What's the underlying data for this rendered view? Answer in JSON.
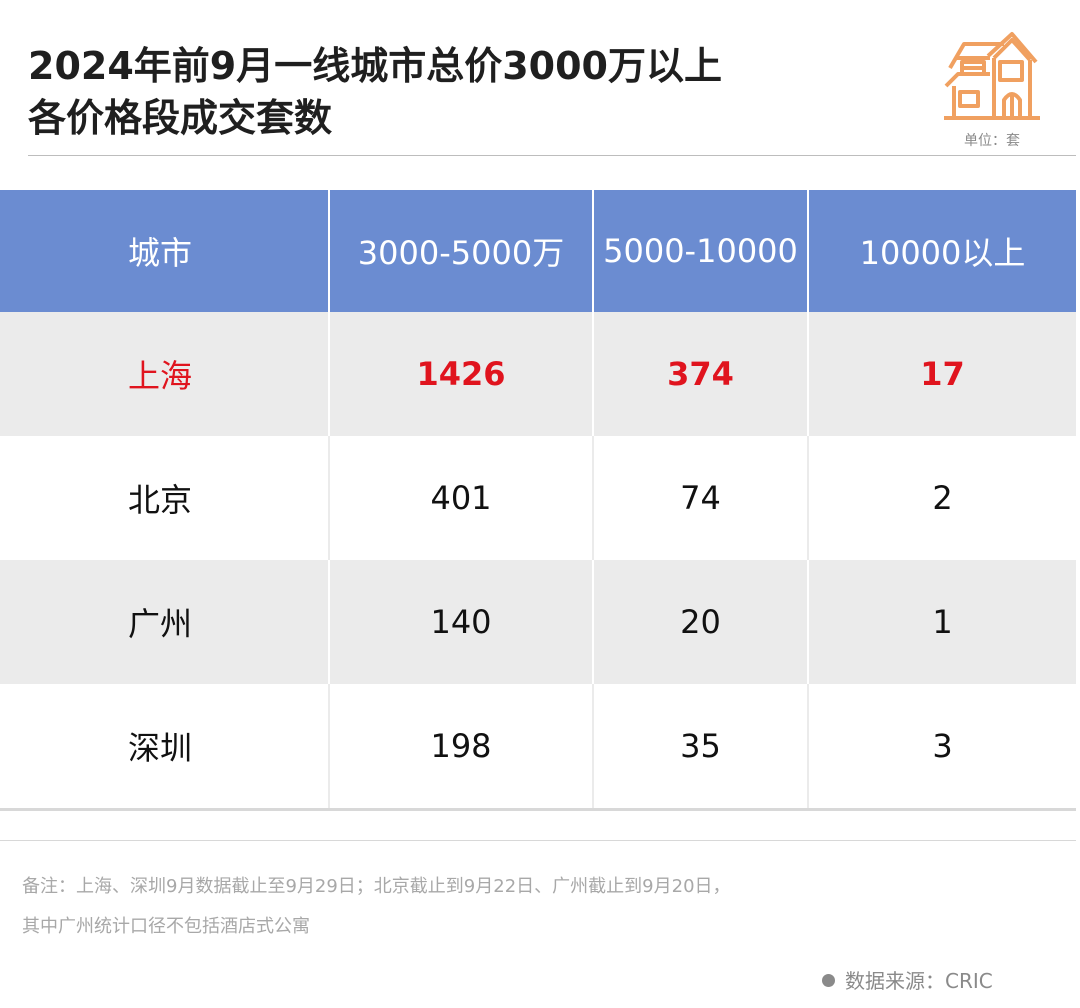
{
  "title_line1": "2024年前9月一线城市总价3000万以上",
  "title_line2": "各价格段成交套数",
  "unit": "单位：套",
  "colors": {
    "header": "#6b8cd1",
    "highlight": "#e0141e",
    "icon": "#f0a060"
  },
  "chart_data": {
    "type": "table",
    "columns": [
      "城市",
      "3000-5000万",
      "5000-10000",
      "10000以上"
    ],
    "rows": [
      {
        "city": "上海",
        "values": [
          "1426",
          "374",
          "17"
        ]
      },
      {
        "city": "北京",
        "values": [
          "401",
          "74",
          "2"
        ]
      },
      {
        "city": "广州",
        "values": [
          "140",
          "20",
          "1"
        ]
      },
      {
        "city": "深圳",
        "values": [
          "198",
          "35",
          "3"
        ]
      }
    ]
  },
  "note_line1": "备注：上海、深圳9月数据截止至9月29日；北京截止到9月22日、广州截止到9月20日，",
  "note_line2": "其中广州统计口径不包括酒店式公寓",
  "source": "数据来源：CRIC"
}
